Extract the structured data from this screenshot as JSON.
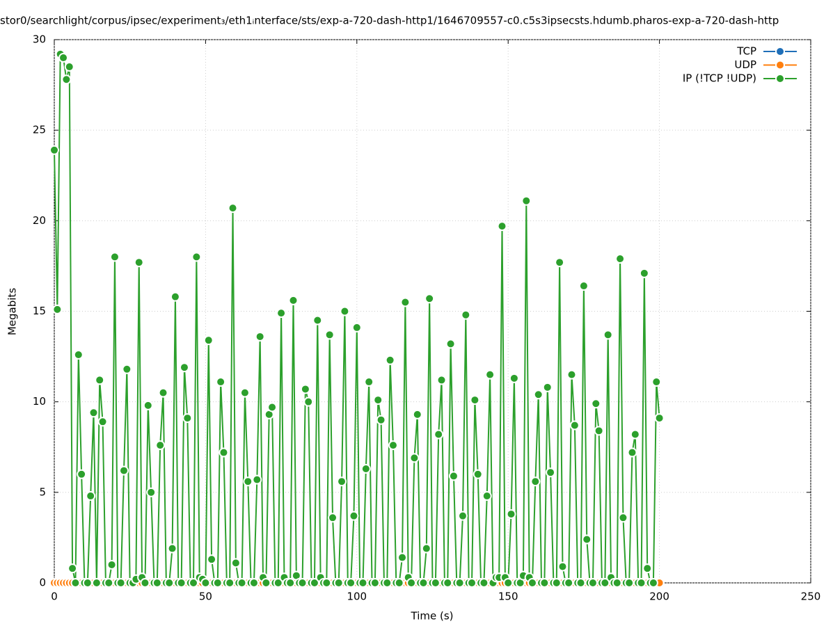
{
  "chart_data": {
    "type": "line",
    "title": "stor0/searchlight/corpus/ipsec/experiment₃/eth1ᵢnterface/sts/exp-a-720-dash-http1/1646709557-c0.c5s3ipsecsts.hdumb.pharos-exp-a-720-dash-http",
    "x_label": "Time (s)",
    "y_label": "Megabits",
    "xlim": [
      0,
      250
    ],
    "xticks": [
      0,
      50,
      100,
      150,
      200,
      250
    ],
    "ylim": [
      0,
      30
    ],
    "yticks": [
      0,
      5,
      10,
      15,
      20,
      25,
      30
    ],
    "grid": true,
    "legend": "top-right",
    "x": [
      0,
      1,
      2,
      3,
      4,
      5,
      6,
      7,
      8,
      9,
      10,
      11,
      12,
      13,
      14,
      15,
      16,
      17,
      18,
      19,
      20,
      21,
      22,
      23,
      24,
      25,
      26,
      27,
      28,
      29,
      30,
      31,
      32,
      33,
      34,
      35,
      36,
      37,
      38,
      39,
      40,
      41,
      42,
      43,
      44,
      45,
      46,
      47,
      48,
      49,
      50,
      51,
      52,
      53,
      54,
      55,
      56,
      57,
      58,
      59,
      60,
      61,
      62,
      63,
      64,
      65,
      66,
      67,
      68,
      69,
      70,
      71,
      72,
      73,
      74,
      75,
      76,
      77,
      78,
      79,
      80,
      81,
      82,
      83,
      84,
      85,
      86,
      87,
      88,
      89,
      90,
      91,
      92,
      93,
      94,
      95,
      96,
      97,
      98,
      99,
      100,
      101,
      102,
      103,
      104,
      105,
      106,
      107,
      108,
      109,
      110,
      111,
      112,
      113,
      114,
      115,
      116,
      117,
      118,
      119,
      120,
      121,
      122,
      123,
      124,
      125,
      126,
      127,
      128,
      129,
      130,
      131,
      132,
      133,
      134,
      135,
      136,
      137,
      138,
      139,
      140,
      141,
      142,
      143,
      144,
      145,
      146,
      147,
      148,
      149,
      150,
      151,
      152,
      153,
      154,
      155,
      156,
      157,
      158,
      159,
      160,
      161,
      162,
      163,
      164,
      165,
      166,
      167,
      168,
      169,
      170,
      171,
      172,
      173,
      174,
      175,
      176,
      177,
      178,
      179,
      180,
      181,
      182,
      183,
      184,
      185,
      186,
      187,
      188,
      189,
      190,
      191,
      192,
      193,
      194,
      195,
      196,
      197,
      198,
      199,
      200
    ],
    "series": [
      {
        "name": "TCP",
        "color": "#1f6fb8",
        "values": [
          0,
          0,
          0,
          0,
          0,
          0,
          0,
          0,
          0,
          0,
          0,
          0,
          0,
          0,
          0,
          0,
          0,
          0,
          0,
          0,
          0,
          0,
          0,
          0,
          0,
          0,
          0,
          0,
          0,
          0,
          0,
          0,
          0,
          0,
          0,
          0,
          0,
          0,
          0,
          0,
          0,
          0,
          0,
          0,
          0,
          0,
          0,
          0,
          0,
          0,
          0,
          0,
          0,
          0,
          0,
          0,
          0,
          0,
          0,
          0,
          0,
          0,
          0,
          0,
          0,
          0,
          0,
          0,
          0,
          0,
          0,
          0,
          0,
          0,
          0,
          0,
          0,
          0,
          0,
          0,
          0,
          0,
          0,
          0,
          0,
          0,
          0,
          0,
          0,
          0,
          0,
          0,
          0,
          0,
          0,
          0,
          0,
          0,
          0,
          0,
          0,
          0,
          0,
          0,
          0,
          0,
          0,
          0,
          0,
          0,
          0,
          0,
          0,
          0,
          0,
          0,
          0,
          0,
          0,
          0,
          0,
          0,
          0,
          0,
          0,
          0,
          0,
          0,
          0,
          0,
          0,
          0,
          0,
          0,
          0,
          0,
          0,
          0,
          0,
          0,
          0,
          0,
          0,
          0,
          0,
          0,
          0,
          0,
          0,
          0,
          0,
          0,
          0,
          0,
          0,
          0,
          0,
          0,
          0,
          0,
          0,
          0,
          0,
          0,
          0,
          0,
          0,
          0,
          0,
          0,
          0,
          0,
          0,
          0,
          0,
          0,
          0,
          0,
          0,
          0,
          0,
          0,
          0,
          0,
          0,
          0,
          0,
          0,
          0,
          0,
          0,
          0,
          0,
          0,
          0,
          0,
          0,
          0,
          0,
          0,
          0
        ]
      },
      {
        "name": "UDP",
        "color": "#ff7f0e",
        "values": [
          0,
          0,
          0,
          0,
          0,
          0,
          0,
          0,
          0,
          0,
          0,
          0,
          0,
          0,
          0,
          0,
          0,
          0,
          0,
          0,
          0,
          0,
          0,
          0,
          0,
          0,
          0,
          0,
          0,
          0,
          0,
          0,
          0,
          0,
          0,
          0,
          0,
          0,
          0,
          0,
          0,
          0,
          0,
          0,
          0,
          0,
          0,
          0,
          0,
          0,
          0,
          0,
          0,
          0,
          0,
          0,
          0,
          0,
          0,
          0,
          0,
          0,
          0,
          0,
          0,
          0,
          0,
          0,
          0,
          0,
          0,
          0,
          0,
          0,
          0,
          0,
          0,
          0,
          0,
          0,
          0,
          0,
          0,
          0,
          0,
          0,
          0,
          0,
          0,
          0,
          0,
          0,
          0,
          0,
          0,
          0,
          0,
          0,
          0,
          0,
          0,
          0,
          0,
          0,
          0,
          0,
          0,
          0,
          0,
          0,
          0,
          0,
          0,
          0,
          0,
          0,
          0,
          0,
          0,
          0,
          0,
          0,
          0,
          0,
          0,
          0,
          0,
          0,
          0,
          0,
          0,
          0,
          0,
          0,
          0,
          0,
          0,
          0,
          0,
          0,
          0,
          0,
          0,
          0,
          0,
          0,
          0,
          0,
          0,
          0,
          0,
          0,
          0,
          0,
          0,
          0,
          0,
          0,
          0,
          0,
          0,
          0,
          0,
          0,
          0,
          0,
          0,
          0,
          0,
          0,
          0,
          0,
          0,
          0,
          0,
          0,
          0,
          0,
          0,
          0,
          0,
          0,
          0,
          0,
          0,
          0,
          0,
          0,
          0,
          0,
          0,
          0,
          0,
          0,
          0,
          0,
          0,
          0,
          0,
          0,
          0
        ]
      },
      {
        "name": "IP (!TCP  !UDP)",
        "color": "#2ca02c",
        "values": [
          23.9,
          15.1,
          29.2,
          29.0,
          27.8,
          28.5,
          0.8,
          0,
          12.6,
          6.0,
          0,
          0,
          4.8,
          9.4,
          0,
          11.2,
          8.9,
          0,
          0,
          1.0,
          18.0,
          0,
          0,
          6.2,
          11.8,
          0,
          0,
          0.2,
          17.7,
          0.3,
          0,
          9.8,
          5.0,
          0,
          0,
          7.6,
          10.5,
          0,
          0,
          1.9,
          15.8,
          0,
          0,
          11.9,
          9.1,
          0,
          0,
          18.0,
          0.3,
          0.2,
          0,
          13.4,
          1.3,
          0,
          0,
          11.1,
          7.2,
          0,
          0,
          20.7,
          1.1,
          0,
          0,
          10.5,
          5.6,
          0,
          0,
          5.7,
          13.6,
          0.3,
          0,
          9.3,
          9.7,
          0,
          0,
          14.9,
          0.3,
          0,
          0,
          15.6,
          0.4,
          0,
          0,
          10.7,
          10.0,
          0,
          0,
          14.5,
          0.3,
          0,
          0,
          13.7,
          3.6,
          0,
          0,
          5.6,
          15.0,
          0,
          0,
          3.7,
          14.1,
          0,
          0,
          6.3,
          11.1,
          0,
          0,
          10.1,
          9.0,
          0,
          0,
          12.3,
          7.6,
          0,
          0,
          1.4,
          15.5,
          0.3,
          0,
          6.9,
          9.3,
          0,
          0,
          1.9,
          15.7,
          0,
          0,
          8.2,
          11.2,
          0,
          0,
          13.2,
          5.9,
          0,
          0,
          3.7,
          14.8,
          0,
          0,
          10.1,
          6.0,
          0,
          0,
          4.8,
          11.5,
          0,
          0.3,
          0.3,
          19.7,
          0.3,
          0,
          3.8,
          11.3,
          0,
          0,
          0.4,
          21.1,
          0.3,
          0,
          5.6,
          10.4,
          0,
          0,
          10.8,
          6.1,
          0,
          0,
          17.7,
          0.9,
          0,
          0,
          11.5,
          8.7,
          0,
          0,
          16.4,
          2.4,
          0,
          0,
          9.9,
          8.4,
          0,
          0,
          13.7,
          0.3,
          0,
          0,
          17.9,
          3.6,
          0,
          0,
          7.2,
          8.2,
          0,
          0,
          17.1,
          0.8,
          0,
          0,
          11.1,
          9.1
        ]
      }
    ]
  }
}
